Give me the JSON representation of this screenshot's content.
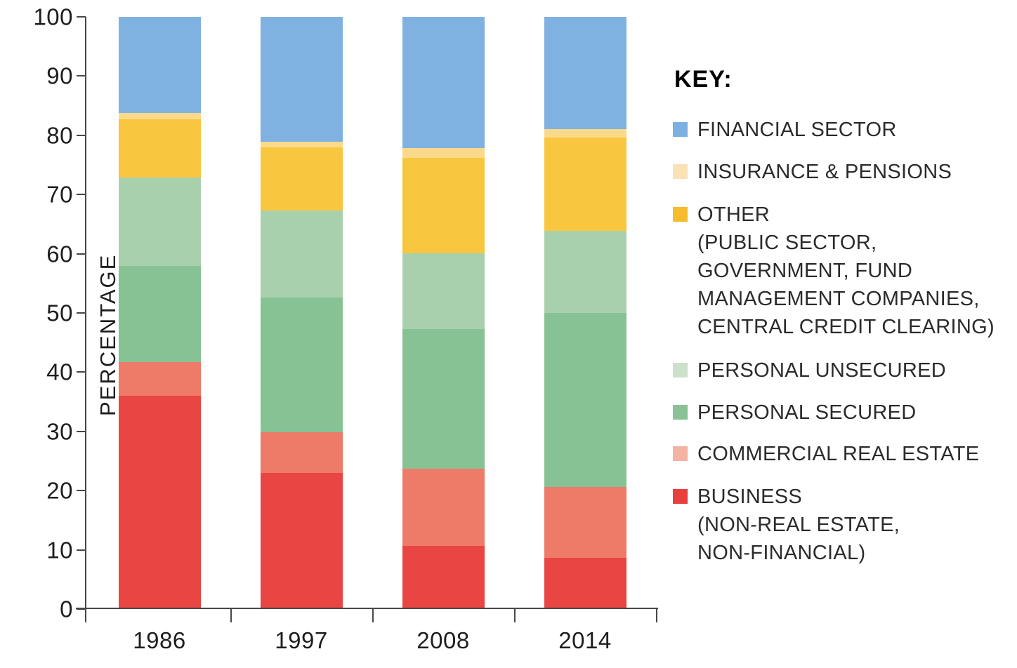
{
  "chart_data": {
    "type": "bar",
    "subtype": "stacked-percentage",
    "categories": [
      "1986",
      "1997",
      "2008",
      "2014"
    ],
    "series": [
      {
        "id": "business",
        "name": "BUSINESS (NON-REAL ESTATE, NON-FINANCIAL)",
        "color": "#E84543",
        "values": [
          36.0,
          23.0,
          10.7,
          8.6
        ]
      },
      {
        "id": "commercial-real-estate",
        "name": "COMMERCIAL REAL ESTATE",
        "color": "#EE7A68",
        "values": [
          5.7,
          6.9,
          13.0,
          12.0
        ]
      },
      {
        "id": "personal-secured",
        "name": "PERSONAL SECURED",
        "color": "#87C295",
        "values": [
          16.2,
          22.7,
          23.6,
          29.4
        ]
      },
      {
        "id": "personal-unsecured",
        "name": "PERSONAL UNSECURED",
        "color": "#A9D0AC",
        "values": [
          15.0,
          14.7,
          12.8,
          13.9
        ]
      },
      {
        "id": "other",
        "name": "OTHER (PUBLIC SECTOR, GOVERNMENT, FUND MANAGEMENT COMPANIES, CENTRAL CREDIT CLEARING)",
        "color": "#F8C63F",
        "values": [
          9.8,
          10.7,
          16.1,
          15.7
        ]
      },
      {
        "id": "insurance-pensions",
        "name": "INSURANCE & PENSIONS",
        "color": "#FBD98B",
        "values": [
          1.1,
          0.9,
          1.6,
          1.4
        ]
      },
      {
        "id": "financial-sector",
        "name": "FINANCIAL SECTOR",
        "color": "#7FB1E1",
        "values": [
          16.2,
          21.1,
          22.2,
          19.0
        ]
      }
    ],
    "title": "",
    "xlabel": "",
    "ylabel": "PERCENTAGE",
    "ylim": [
      0,
      100
    ],
    "yticks": [
      100,
      90,
      80,
      70,
      60,
      50,
      40,
      30,
      20,
      10,
      0
    ],
    "grid": false,
    "legend_position": "right"
  },
  "legend": {
    "title": "KEY:",
    "items": [
      {
        "id": "financial-sector",
        "swatch_color": "#7CB0E2",
        "lines": [
          "FINANCIAL SECTOR"
        ]
      },
      {
        "id": "insurance-pensions",
        "swatch_color": "#FBE2B4",
        "lines": [
          "INSURANCE & PENSIONS"
        ]
      },
      {
        "id": "other",
        "swatch_color": "#F5BC2B",
        "lines": [
          "OTHER",
          "(PUBLIC SECTOR,",
          "GOVERNMENT, FUND",
          "MANAGEMENT COMPANIES,",
          "CENTRAL CREDIT CLEARING)"
        ]
      },
      {
        "id": "personal-unsecured",
        "swatch_color": "#CBE1C9",
        "lines": [
          "PERSONAL UNSECURED"
        ]
      },
      {
        "id": "personal-secured",
        "swatch_color": "#8AC296",
        "lines": [
          "PERSONAL SECURED"
        ]
      },
      {
        "id": "commercial-real-estate",
        "swatch_color": "#F4B2A3",
        "lines": [
          "COMMERCIAL REAL ESTATE"
        ]
      },
      {
        "id": "business",
        "swatch_color": "#E8403D",
        "lines": [
          "BUSINESS",
          "(NON-REAL ESTATE,",
          "NON-FINANCIAL)"
        ]
      }
    ]
  },
  "axis_color": "#474747",
  "text_color": "#1e1e1e"
}
